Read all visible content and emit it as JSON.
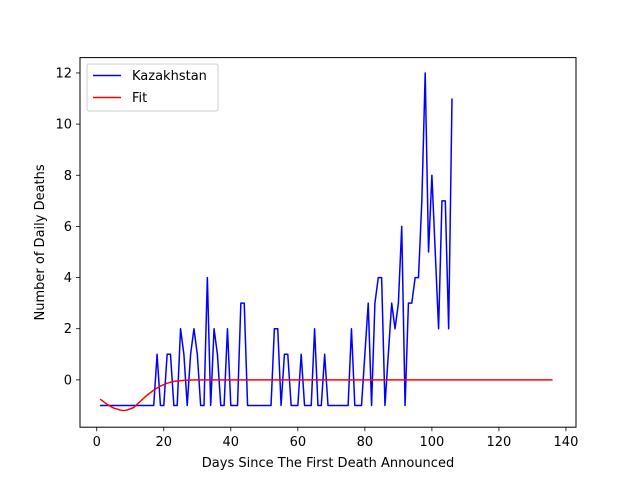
{
  "chart_data": {
    "type": "line",
    "title": "",
    "xlabel": "Days Since The First Death Announced",
    "ylabel": "Number of Daily Deaths",
    "xlim": [
      -5,
      143
    ],
    "ylim": [
      -1.85,
      12.6
    ],
    "xticks": [
      0,
      20,
      40,
      60,
      80,
      100,
      120,
      140
    ],
    "yticks": [
      0,
      2,
      4,
      6,
      8,
      10,
      12
    ],
    "grid": false,
    "legend_position": "top-left",
    "series": [
      {
        "name": "Kazakhstan",
        "color": "#0000ff",
        "x": [
          1,
          2,
          3,
          4,
          5,
          6,
          7,
          8,
          9,
          10,
          11,
          12,
          13,
          14,
          15,
          16,
          17,
          18,
          19,
          20,
          21,
          22,
          23,
          24,
          25,
          26,
          27,
          28,
          29,
          30,
          31,
          32,
          33,
          34,
          35,
          36,
          37,
          38,
          39,
          40,
          41,
          42,
          43,
          44,
          45,
          46,
          47,
          48,
          49,
          50,
          51,
          52,
          53,
          54,
          55,
          56,
          57,
          58,
          59,
          60,
          61,
          62,
          63,
          64,
          65,
          66,
          67,
          68,
          69,
          70,
          71,
          72,
          73,
          74,
          75,
          76,
          77,
          78,
          79,
          80,
          81,
          82,
          83,
          84,
          85,
          86,
          87,
          88,
          89,
          90,
          91,
          92,
          93,
          94,
          95,
          96,
          97,
          98,
          99,
          100,
          101,
          102,
          103,
          104,
          105,
          106
        ],
        "y": [
          -1,
          -1,
          -1,
          -1,
          -1,
          -1,
          -1,
          -1,
          -1,
          -1,
          -1,
          -1,
          -1,
          -1,
          -1,
          -1,
          -1,
          1,
          -1,
          -1,
          1,
          1,
          -1,
          -1,
          2,
          1,
          -1,
          1,
          2,
          1,
          -1,
          -1,
          4,
          -1,
          2,
          1,
          -1,
          -1,
          2,
          -1,
          -1,
          -1,
          3,
          3,
          -1,
          -1,
          -1,
          -1,
          -1,
          -1,
          -1,
          -1,
          2,
          2,
          -1,
          1,
          1,
          -1,
          -1,
          -1,
          1,
          -1,
          -1,
          -1,
          2,
          -1,
          -1,
          1,
          -1,
          -1,
          -1,
          -1,
          -1,
          -1,
          -1,
          2,
          -1,
          -1,
          -1,
          1,
          3,
          -1,
          3,
          4,
          4,
          -1,
          1,
          3,
          2,
          3,
          6,
          -1,
          3,
          3,
          4,
          4,
          7,
          12,
          5,
          8,
          5,
          2,
          7,
          7,
          2,
          11
        ]
      },
      {
        "name": "Fit",
        "color": "#ff0000",
        "model": "constant 0 with a Gaussian dip: y = -1.2 * exp(-((x - 8) / 6.5)^2)",
        "x": [
          1,
          3,
          5,
          7,
          8,
          9,
          11,
          13,
          15,
          17,
          19,
          21,
          23,
          25,
          27,
          30,
          35,
          40,
          136
        ],
        "y": [
          -0.75,
          -0.95,
          -1.1,
          -1.18,
          -1.2,
          -1.18,
          -1.08,
          -0.84,
          -0.6,
          -0.4,
          -0.24,
          -0.13,
          -0.06,
          -0.03,
          -0.01,
          0,
          0,
          0,
          0
        ]
      }
    ]
  }
}
